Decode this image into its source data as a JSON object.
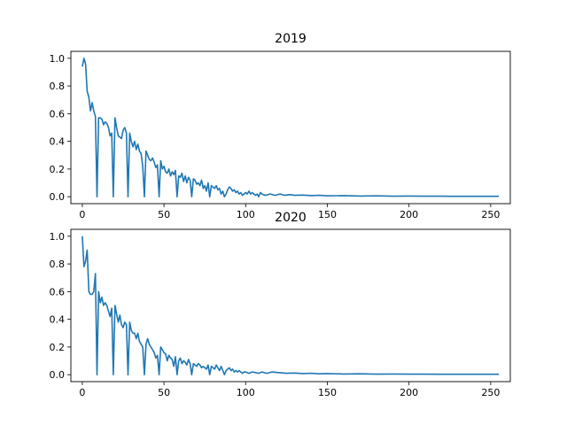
{
  "colors": {
    "line": "#1f77b4",
    "axes": "#000000",
    "background": "#ffffff"
  },
  "chart_data": [
    {
      "type": "line",
      "title": "2019",
      "xlabel": "",
      "ylabel": "",
      "xlim": [
        -7,
        262
      ],
      "ylim": [
        -0.05,
        1.05
      ],
      "xticks": [
        0,
        50,
        100,
        150,
        200,
        250
      ],
      "yticks": [
        0.0,
        0.2,
        0.4,
        0.6,
        0.8,
        1.0
      ],
      "xtick_labels": [
        "0",
        "50",
        "100",
        "150",
        "200",
        "250"
      ],
      "ytick_labels": [
        "0.0",
        "0.2",
        "0.4",
        "0.6",
        "0.8",
        "1.0"
      ],
      "grid": false,
      "series": [
        {
          "points": [
            [
              0,
              0.94
            ],
            [
              1,
              1.0
            ],
            [
              2,
              0.96
            ],
            [
              3,
              0.76
            ],
            [
              4,
              0.72
            ],
            [
              5,
              0.62
            ],
            [
              6,
              0.68
            ],
            [
              7,
              0.62
            ],
            [
              8,
              0.58
            ],
            [
              9,
              0.0
            ],
            [
              10,
              0.57
            ],
            [
              11,
              0.57
            ],
            [
              12,
              0.56
            ],
            [
              13,
              0.52
            ],
            [
              14,
              0.54
            ],
            [
              15,
              0.53
            ],
            [
              16,
              0.5
            ],
            [
              17,
              0.44
            ],
            [
              18,
              0.46
            ],
            [
              19,
              0.0
            ],
            [
              20,
              0.57
            ],
            [
              21,
              0.5
            ],
            [
              22,
              0.44
            ],
            [
              23,
              0.43
            ],
            [
              24,
              0.42
            ],
            [
              25,
              0.48
            ],
            [
              26,
              0.5
            ],
            [
              27,
              0.46
            ],
            [
              28,
              0.0
            ],
            [
              29,
              0.46
            ],
            [
              30,
              0.4
            ],
            [
              31,
              0.36
            ],
            [
              32,
              0.4
            ],
            [
              33,
              0.34
            ],
            [
              34,
              0.38
            ],
            [
              35,
              0.33
            ],
            [
              36,
              0.31
            ],
            [
              37,
              0.22
            ],
            [
              38,
              0.0
            ],
            [
              39,
              0.33
            ],
            [
              40,
              0.3
            ],
            [
              41,
              0.27
            ],
            [
              42,
              0.26
            ],
            [
              43,
              0.28
            ],
            [
              44,
              0.25
            ],
            [
              45,
              0.21
            ],
            [
              46,
              0.23
            ],
            [
              47,
              0.0
            ],
            [
              48,
              0.26
            ],
            [
              49,
              0.2
            ],
            [
              50,
              0.22
            ],
            [
              51,
              0.18
            ],
            [
              52,
              0.17
            ],
            [
              53,
              0.2
            ],
            [
              54,
              0.15
            ],
            [
              55,
              0.18
            ],
            [
              56,
              0.16
            ],
            [
              57,
              0.19
            ],
            [
              58,
              0.0
            ],
            [
              59,
              0.15
            ],
            [
              60,
              0.14
            ],
            [
              61,
              0.17
            ],
            [
              62,
              0.11
            ],
            [
              63,
              0.15
            ],
            [
              64,
              0.1
            ],
            [
              65,
              0.14
            ],
            [
              66,
              0.12
            ],
            [
              67,
              0.0
            ],
            [
              68,
              0.13
            ],
            [
              69,
              0.12
            ],
            [
              70,
              0.09
            ],
            [
              71,
              0.1
            ],
            [
              72,
              0.08
            ],
            [
              73,
              0.12
            ],
            [
              74,
              0.06
            ],
            [
              75,
              0.08
            ],
            [
              76,
              0.04
            ],
            [
              77,
              0.1
            ],
            [
              78,
              0.0
            ],
            [
              79,
              0.08
            ],
            [
              80,
              0.07
            ],
            [
              81,
              0.06
            ],
            [
              82,
              0.08
            ],
            [
              83,
              0.05
            ],
            [
              84,
              0.06
            ],
            [
              85,
              0.02
            ],
            [
              86,
              0.04
            ],
            [
              87,
              0.0
            ],
            [
              88,
              0.02
            ],
            [
              89,
              0.05
            ],
            [
              90,
              0.07
            ],
            [
              91,
              0.06
            ],
            [
              92,
              0.04
            ],
            [
              93,
              0.05
            ],
            [
              94,
              0.03
            ],
            [
              95,
              0.04
            ],
            [
              96,
              0.02
            ],
            [
              97,
              0.03
            ],
            [
              98,
              0.01
            ],
            [
              99,
              0.02
            ],
            [
              100,
              0.03
            ],
            [
              101,
              0.02
            ],
            [
              102,
              0.04
            ],
            [
              103,
              0.02
            ],
            [
              104,
              0.03
            ],
            [
              105,
              0.02
            ],
            [
              106,
              0.01
            ],
            [
              107,
              0.02
            ],
            [
              108,
              0.0
            ],
            [
              109,
              0.03
            ],
            [
              110,
              0.02
            ],
            [
              112,
              0.01
            ],
            [
              115,
              0.02
            ],
            [
              118,
              0.01
            ],
            [
              121,
              0.02
            ],
            [
              124,
              0.01
            ],
            [
              127,
              0.015
            ],
            [
              130,
              0.01
            ],
            [
              135,
              0.012
            ],
            [
              140,
              0.008
            ],
            [
              145,
              0.01
            ],
            [
              150,
              0.006
            ],
            [
              160,
              0.008
            ],
            [
              170,
              0.005
            ],
            [
              180,
              0.006
            ],
            [
              190,
              0.004
            ],
            [
              200,
              0.005
            ],
            [
              210,
              0.004
            ],
            [
              220,
              0.004
            ],
            [
              230,
              0.003
            ],
            [
              240,
              0.003
            ],
            [
              250,
              0.003
            ],
            [
              255,
              0.003
            ]
          ]
        }
      ]
    },
    {
      "type": "line",
      "title": "2020",
      "xlabel": "",
      "ylabel": "",
      "xlim": [
        -7,
        262
      ],
      "ylim": [
        -0.05,
        1.05
      ],
      "xticks": [
        0,
        50,
        100,
        150,
        200,
        250
      ],
      "yticks": [
        0.0,
        0.2,
        0.4,
        0.6,
        0.8,
        1.0
      ],
      "xtick_labels": [
        "0",
        "50",
        "100",
        "150",
        "200",
        "250"
      ],
      "ytick_labels": [
        "0.0",
        "0.2",
        "0.4",
        "0.6",
        "0.8",
        "1.0"
      ],
      "grid": false,
      "series": [
        {
          "points": [
            [
              0,
              1.0
            ],
            [
              1,
              0.78
            ],
            [
              2,
              0.82
            ],
            [
              3,
              0.9
            ],
            [
              4,
              0.6
            ],
            [
              5,
              0.58
            ],
            [
              6,
              0.58
            ],
            [
              7,
              0.6
            ],
            [
              8,
              0.73
            ],
            [
              9,
              0.0
            ],
            [
              10,
              0.6
            ],
            [
              11,
              0.52
            ],
            [
              12,
              0.56
            ],
            [
              13,
              0.5
            ],
            [
              14,
              0.52
            ],
            [
              15,
              0.5
            ],
            [
              16,
              0.46
            ],
            [
              17,
              0.42
            ],
            [
              18,
              0.48
            ],
            [
              19,
              0.0
            ],
            [
              20,
              0.5
            ],
            [
              21,
              0.44
            ],
            [
              22,
              0.38
            ],
            [
              23,
              0.43
            ],
            [
              24,
              0.36
            ],
            [
              25,
              0.34
            ],
            [
              26,
              0.38
            ],
            [
              27,
              0.36
            ],
            [
              28,
              0.0
            ],
            [
              29,
              0.38
            ],
            [
              30,
              0.32
            ],
            [
              31,
              0.3
            ],
            [
              32,
              0.3
            ],
            [
              33,
              0.26
            ],
            [
              34,
              0.3
            ],
            [
              35,
              0.24
            ],
            [
              36,
              0.22
            ],
            [
              37,
              0.2
            ],
            [
              38,
              0.0
            ],
            [
              39,
              0.22
            ],
            [
              40,
              0.26
            ],
            [
              41,
              0.22
            ],
            [
              42,
              0.2
            ],
            [
              43,
              0.18
            ],
            [
              44,
              0.16
            ],
            [
              45,
              0.12
            ],
            [
              46,
              0.14
            ],
            [
              47,
              0.0
            ],
            [
              48,
              0.2
            ],
            [
              49,
              0.18
            ],
            [
              50,
              0.16
            ],
            [
              51,
              0.15
            ],
            [
              52,
              0.1
            ],
            [
              53,
              0.14
            ],
            [
              54,
              0.12
            ],
            [
              55,
              0.11
            ],
            [
              56,
              0.06
            ],
            [
              57,
              0.13
            ],
            [
              58,
              0.0
            ],
            [
              59,
              0.1
            ],
            [
              60,
              0.12
            ],
            [
              61,
              0.08
            ],
            [
              62,
              0.1
            ],
            [
              63,
              0.09
            ],
            [
              64,
              0.07
            ],
            [
              65,
              0.11
            ],
            [
              66,
              0.08
            ],
            [
              67,
              0.0
            ],
            [
              68,
              0.08
            ],
            [
              69,
              0.07
            ],
            [
              70,
              0.06
            ],
            [
              71,
              0.08
            ],
            [
              72,
              0.07
            ],
            [
              73,
              0.05
            ],
            [
              74,
              0.06
            ],
            [
              75,
              0.05
            ],
            [
              76,
              0.04
            ],
            [
              77,
              0.07
            ],
            [
              78,
              0.0
            ],
            [
              79,
              0.06
            ],
            [
              80,
              0.05
            ],
            [
              81,
              0.04
            ],
            [
              82,
              0.07
            ],
            [
              83,
              0.05
            ],
            [
              84,
              0.03
            ],
            [
              85,
              0.06
            ],
            [
              86,
              0.03
            ],
            [
              87,
              0.0
            ],
            [
              88,
              0.03
            ],
            [
              89,
              0.04
            ],
            [
              90,
              0.05
            ],
            [
              91,
              0.03
            ],
            [
              92,
              0.04
            ],
            [
              93,
              0.02
            ],
            [
              94,
              0.03
            ],
            [
              95,
              0.02
            ],
            [
              96,
              0.03
            ],
            [
              97,
              0.02
            ],
            [
              98,
              0.01
            ],
            [
              99,
              0.02
            ],
            [
              100,
              0.02
            ],
            [
              102,
              0.01
            ],
            [
              104,
              0.02
            ],
            [
              106,
              0.015
            ],
            [
              108,
              0.01
            ],
            [
              110,
              0.02
            ],
            [
              113,
              0.01
            ],
            [
              116,
              0.02
            ],
            [
              120,
              0.015
            ],
            [
              125,
              0.01
            ],
            [
              130,
              0.012
            ],
            [
              135,
              0.008
            ],
            [
              140,
              0.01
            ],
            [
              145,
              0.006
            ],
            [
              150,
              0.008
            ],
            [
              160,
              0.005
            ],
            [
              170,
              0.006
            ],
            [
              180,
              0.004
            ],
            [
              190,
              0.005
            ],
            [
              200,
              0.004
            ],
            [
              210,
              0.004
            ],
            [
              220,
              0.003
            ],
            [
              230,
              0.003
            ],
            [
              240,
              0.003
            ],
            [
              250,
              0.003
            ],
            [
              255,
              0.003
            ]
          ]
        }
      ]
    }
  ]
}
